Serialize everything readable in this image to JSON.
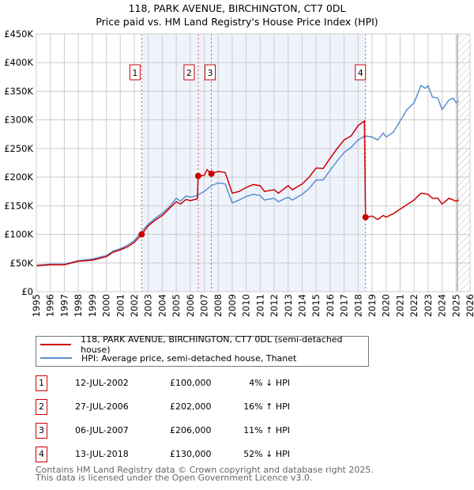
{
  "title_line1": "118, PARK AVENUE, BIRCHINGTON, CT7 0DL",
  "title_line2": "Price paid vs. HM Land Registry's House Price Index (HPI)",
  "chart_data": {
    "type": "line",
    "title": "118, PARK AVENUE, BIRCHINGTON, CT7 0DL - Price paid vs. HM Land Registry's House Price Index (HPI)",
    "xlim": [
      1995,
      2026
    ],
    "ylim": [
      0,
      450000
    ],
    "x_ticks": [
      "1995",
      "1996",
      "1997",
      "1998",
      "1999",
      "2000",
      "2001",
      "2002",
      "2003",
      "2004",
      "2005",
      "2006",
      "2007",
      "2008",
      "2009",
      "2010",
      "2011",
      "2012",
      "2013",
      "2014",
      "2015",
      "2016",
      "2017",
      "2018",
      "2019",
      "2020",
      "2021",
      "2022",
      "2023",
      "2024",
      "2025",
      "2026"
    ],
    "y_ticks": [
      {
        "v": 0,
        "label": "£0"
      },
      {
        "v": 50000,
        "label": "£50K"
      },
      {
        "v": 100000,
        "label": "£100K"
      },
      {
        "v": 150000,
        "label": "£150K"
      },
      {
        "v": 200000,
        "label": "£200K"
      },
      {
        "v": 250000,
        "label": "£250K"
      },
      {
        "v": 300000,
        "label": "£300K"
      },
      {
        "v": 350000,
        "label": "£350K"
      },
      {
        "v": 400000,
        "label": "£400K"
      },
      {
        "v": 450000,
        "label": "£450K"
      }
    ],
    "shaded_range": [
      2002.53,
      2018.53
    ],
    "forecast_from": 2025.1,
    "series": [
      {
        "name": "118, PARK AVENUE, BIRCHINGTON, CT7 0DL (semi-detached house)",
        "color": "#cc0000",
        "points": [
          [
            1995,
            45
          ],
          [
            1996,
            47
          ],
          [
            1997,
            47
          ],
          [
            1998,
            53
          ],
          [
            1999,
            55
          ],
          [
            2000,
            61
          ],
          [
            2000.5,
            69
          ],
          [
            2001,
            73
          ],
          [
            2001.5,
            78
          ],
          [
            2002,
            86
          ],
          [
            2002.53,
            100
          ],
          [
            2003,
            115
          ],
          [
            2003.5,
            125
          ],
          [
            2004,
            133
          ],
          [
            2004.5,
            145
          ],
          [
            2005,
            157
          ],
          [
            2005.3,
            153
          ],
          [
            2005.7,
            161
          ],
          [
            2006,
            159
          ],
          [
            2006.5,
            162
          ],
          [
            2006.57,
            202
          ],
          [
            2007,
            203
          ],
          [
            2007.2,
            213
          ],
          [
            2007.51,
            206
          ],
          [
            2008,
            210
          ],
          [
            2008.5,
            208
          ],
          [
            2009,
            172
          ],
          [
            2009.5,
            175
          ],
          [
            2010,
            182
          ],
          [
            2010.5,
            187
          ],
          [
            2011,
            185
          ],
          [
            2011.3,
            175
          ],
          [
            2012,
            178
          ],
          [
            2012.3,
            172
          ],
          [
            2013,
            185
          ],
          [
            2013.3,
            178
          ],
          [
            2014,
            188
          ],
          [
            2014.5,
            200
          ],
          [
            2015,
            216
          ],
          [
            2015.5,
            215
          ],
          [
            2016,
            233
          ],
          [
            2016.5,
            250
          ],
          [
            2017,
            265
          ],
          [
            2017.5,
            272
          ],
          [
            2018,
            290
          ],
          [
            2018.45,
            298
          ],
          [
            2018.53,
            130
          ],
          [
            2019,
            132
          ],
          [
            2019.4,
            126
          ],
          [
            2019.8,
            133
          ],
          [
            2020,
            130
          ],
          [
            2020.5,
            136
          ],
          [
            2021,
            144
          ],
          [
            2021.5,
            152
          ],
          [
            2022,
            160
          ],
          [
            2022.5,
            172
          ],
          [
            2023,
            170
          ],
          [
            2023.3,
            163
          ],
          [
            2023.7,
            163
          ],
          [
            2024,
            153
          ],
          [
            2024.5,
            163
          ],
          [
            2025,
            158
          ],
          [
            2025.2,
            160
          ]
        ]
      },
      {
        "name": "HPI: Average price, semi-detached house, Thanet",
        "color": "#5b8fd0",
        "points": [
          [
            1995,
            46
          ],
          [
            1996,
            48
          ],
          [
            1997,
            48
          ],
          [
            1998,
            54
          ],
          [
            1999,
            57
          ],
          [
            2000,
            63
          ],
          [
            2000.5,
            71
          ],
          [
            2001,
            75
          ],
          [
            2001.5,
            81
          ],
          [
            2002,
            89
          ],
          [
            2002.5,
            104
          ],
          [
            2003,
            118
          ],
          [
            2003.5,
            128
          ],
          [
            2004,
            137
          ],
          [
            2004.5,
            148
          ],
          [
            2005,
            163
          ],
          [
            2005.3,
            158
          ],
          [
            2005.7,
            167
          ],
          [
            2006,
            165
          ],
          [
            2006.5,
            168
          ],
          [
            2007,
            175
          ],
          [
            2007.5,
            185
          ],
          [
            2008,
            190
          ],
          [
            2008.5,
            188
          ],
          [
            2009,
            155
          ],
          [
            2009.5,
            160
          ],
          [
            2010,
            166
          ],
          [
            2010.5,
            170
          ],
          [
            2011,
            168
          ],
          [
            2011.3,
            160
          ],
          [
            2012,
            163
          ],
          [
            2012.3,
            157
          ],
          [
            2013,
            165
          ],
          [
            2013.3,
            160
          ],
          [
            2014,
            170
          ],
          [
            2014.5,
            180
          ],
          [
            2015,
            195
          ],
          [
            2015.5,
            195
          ],
          [
            2016,
            212
          ],
          [
            2016.5,
            228
          ],
          [
            2017,
            243
          ],
          [
            2017.5,
            252
          ],
          [
            2018,
            265
          ],
          [
            2018.5,
            272
          ],
          [
            2019,
            270
          ],
          [
            2019.4,
            265
          ],
          [
            2019.8,
            277
          ],
          [
            2020,
            270
          ],
          [
            2020.5,
            278
          ],
          [
            2021,
            298
          ],
          [
            2021.5,
            318
          ],
          [
            2022,
            330
          ],
          [
            2022.5,
            360
          ],
          [
            2022.8,
            355
          ],
          [
            2023,
            360
          ],
          [
            2023.3,
            340
          ],
          [
            2023.7,
            338
          ],
          [
            2024,
            318
          ],
          [
            2024.5,
            335
          ],
          [
            2024.8,
            338
          ],
          [
            2025,
            330
          ],
          [
            2025.2,
            333
          ]
        ]
      }
    ],
    "sales": [
      {
        "id": "1",
        "x": 2002.53,
        "price": 100,
        "date": "12-JUL-2002",
        "price_label": "£100,000",
        "hpi": "4% ↓ HPI"
      },
      {
        "id": "2",
        "x": 2006.57,
        "price": 202,
        "date": "27-JUL-2006",
        "price_label": "£202,000",
        "hpi": "16% ↑ HPI"
      },
      {
        "id": "3",
        "x": 2007.51,
        "price": 206,
        "date": "06-JUL-2007",
        "price_label": "£206,000",
        "hpi": "11% ↑ HPI"
      },
      {
        "id": "4",
        "x": 2018.53,
        "price": 130,
        "date": "13-JUL-2018",
        "price_label": "£130,000",
        "hpi": "52% ↓ HPI"
      }
    ],
    "value_units": "£K"
  },
  "legend": {
    "red": "118, PARK AVENUE, BIRCHINGTON, CT7 0DL (semi-detached house)",
    "blue": "HPI: Average price, semi-detached house, Thanet"
  },
  "footer1": "Contains HM Land Registry data © Crown copyright and database right 2025.",
  "footer2": "This data is licensed under the Open Government Licence v3.0."
}
